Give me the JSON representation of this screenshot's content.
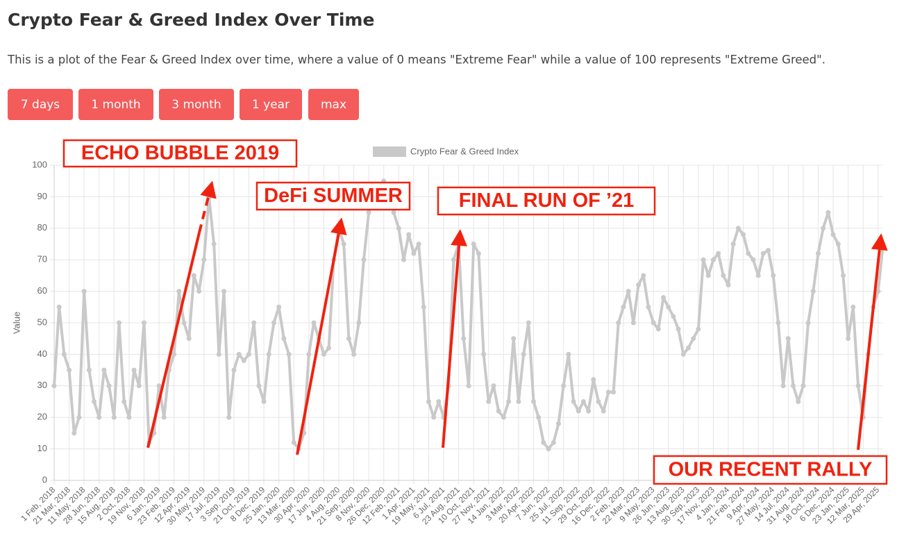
{
  "header": {
    "title": "Crypto Fear & Greed Index Over Time",
    "description": "This is a plot of the Fear & Greed Index over time, where a value of 0 means \"Extreme Fear\" while a value of 100 represents \"Extreme Greed\"."
  },
  "buttons": [
    "7 days",
    "1 month",
    "3 month",
    "1 year",
    "max"
  ],
  "chart_data": {
    "type": "line",
    "ylabel": "Value",
    "ylim": [
      0,
      100
    ],
    "yticks": [
      0,
      10,
      20,
      30,
      40,
      50,
      60,
      70,
      80,
      90,
      100
    ],
    "grid": true,
    "legend": "top",
    "annotations": [
      "ECHO BUBBLE 2019",
      "DeFi SUMMER",
      "FINAL RUN OF ’21",
      "OUR RECENT RALLY"
    ],
    "categories": [
      "1 Feb, 2018",
      null,
      null,
      "21 Mar, 2018",
      null,
      null,
      "11 May, 2018",
      null,
      null,
      "28 Jun, 2018",
      null,
      null,
      "15 Aug, 2018",
      null,
      null,
      "2 Oct, 2018",
      null,
      null,
      "19 Nov, 2018",
      null,
      null,
      "6 Jan, 2019",
      null,
      null,
      "23 Feb, 2019",
      null,
      null,
      "12 Apr, 2019",
      null,
      null,
      "30 May, 2019",
      null,
      null,
      "17 Jul, 2019",
      null,
      null,
      "3 Sep, 2019",
      null,
      null,
      "21 Oct, 2019",
      null,
      null,
      "8 Dec, 2019",
      null,
      null,
      "25 Jan, 2020",
      null,
      null,
      "13 Mar, 2020",
      null,
      null,
      "30 Apr, 2020",
      null,
      null,
      "17 Jun, 2020",
      null,
      null,
      "4 Aug, 2020",
      null,
      null,
      "21 Sep, 2020",
      null,
      null,
      "8 Nov, 2020",
      null,
      null,
      "26 Dec, 2020",
      null,
      null,
      "12 Feb, 2021",
      null,
      null,
      "1 Apr, 2021",
      null,
      null,
      "19 May, 2021",
      null,
      null,
      "6 Jul, 2021",
      null,
      null,
      "23 Aug, 2021",
      null,
      null,
      "10 Oct, 2021",
      null,
      null,
      "27 Nov, 2021",
      null,
      null,
      "14 Jan, 2022",
      null,
      null,
      "3 Mar, 2022",
      null,
      null,
      "20 Apr, 2022",
      null,
      null,
      "7 Jun, 2022",
      null,
      null,
      "25 Jul, 2022",
      null,
      null,
      "11 Sep, 2022",
      null,
      null,
      "29 Oct, 2022",
      null,
      null,
      "16 Dec, 2022",
      null,
      null,
      "2 Feb, 2023",
      null,
      null,
      "22 Mar, 2023",
      null,
      null,
      "9 May, 2023",
      null,
      null,
      "26 Jun, 2023",
      null,
      null,
      "13 Aug, 2023",
      null,
      null,
      "30 Sep, 2023",
      null,
      null,
      "17 Nov, 2023",
      null,
      null,
      "4 Jan, 2024",
      null,
      null,
      "21 Feb, 2024",
      null,
      null,
      "9 Apr, 2024",
      null,
      null,
      "27 May, 2024",
      null,
      null,
      "14 Jul, 2024",
      null,
      null,
      "31 Aug, 2024",
      null,
      null,
      "18 Oct, 2024",
      null,
      null,
      "6 Dec, 2024",
      null,
      null,
      "23 Jan, 2025",
      null,
      null,
      "12 Mar, 2025",
      null,
      null,
      "29 Apr, 2025",
      null
    ],
    "series": [
      {
        "name": "Crypto Fear & Greed Index",
        "color": "#c9c9c9",
        "values": [
          30,
          55,
          40,
          35,
          15,
          20,
          60,
          35,
          25,
          20,
          35,
          30,
          20,
          50,
          25,
          20,
          35,
          30,
          50,
          12,
          15,
          30,
          20,
          35,
          40,
          60,
          50,
          45,
          65,
          60,
          70,
          90,
          75,
          40,
          60,
          20,
          35,
          40,
          38,
          40,
          50,
          30,
          25,
          40,
          50,
          55,
          45,
          40,
          12,
          10,
          15,
          40,
          50,
          45,
          40,
          42,
          70,
          80,
          75,
          45,
          40,
          50,
          70,
          85,
          90,
          93,
          95,
          92,
          85,
          80,
          70,
          78,
          72,
          75,
          55,
          25,
          20,
          25,
          20,
          30,
          70,
          75,
          45,
          30,
          75,
          72,
          40,
          25,
          30,
          22,
          20,
          25,
          45,
          25,
          40,
          50,
          25,
          20,
          12,
          10,
          12,
          18,
          30,
          40,
          25,
          22,
          25,
          22,
          32,
          25,
          22,
          28,
          28,
          50,
          55,
          60,
          50,
          62,
          65,
          55,
          50,
          48,
          58,
          55,
          52,
          48,
          40,
          42,
          45,
          48,
          70,
          65,
          70,
          72,
          65,
          62,
          75,
          80,
          78,
          72,
          70,
          65,
          72,
          73,
          65,
          50,
          30,
          45,
          30,
          25,
          30,
          50,
          60,
          72,
          80,
          85,
          78,
          75,
          65,
          45,
          55,
          30,
          20,
          40,
          55,
          60,
          75
        ]
      }
    ]
  }
}
